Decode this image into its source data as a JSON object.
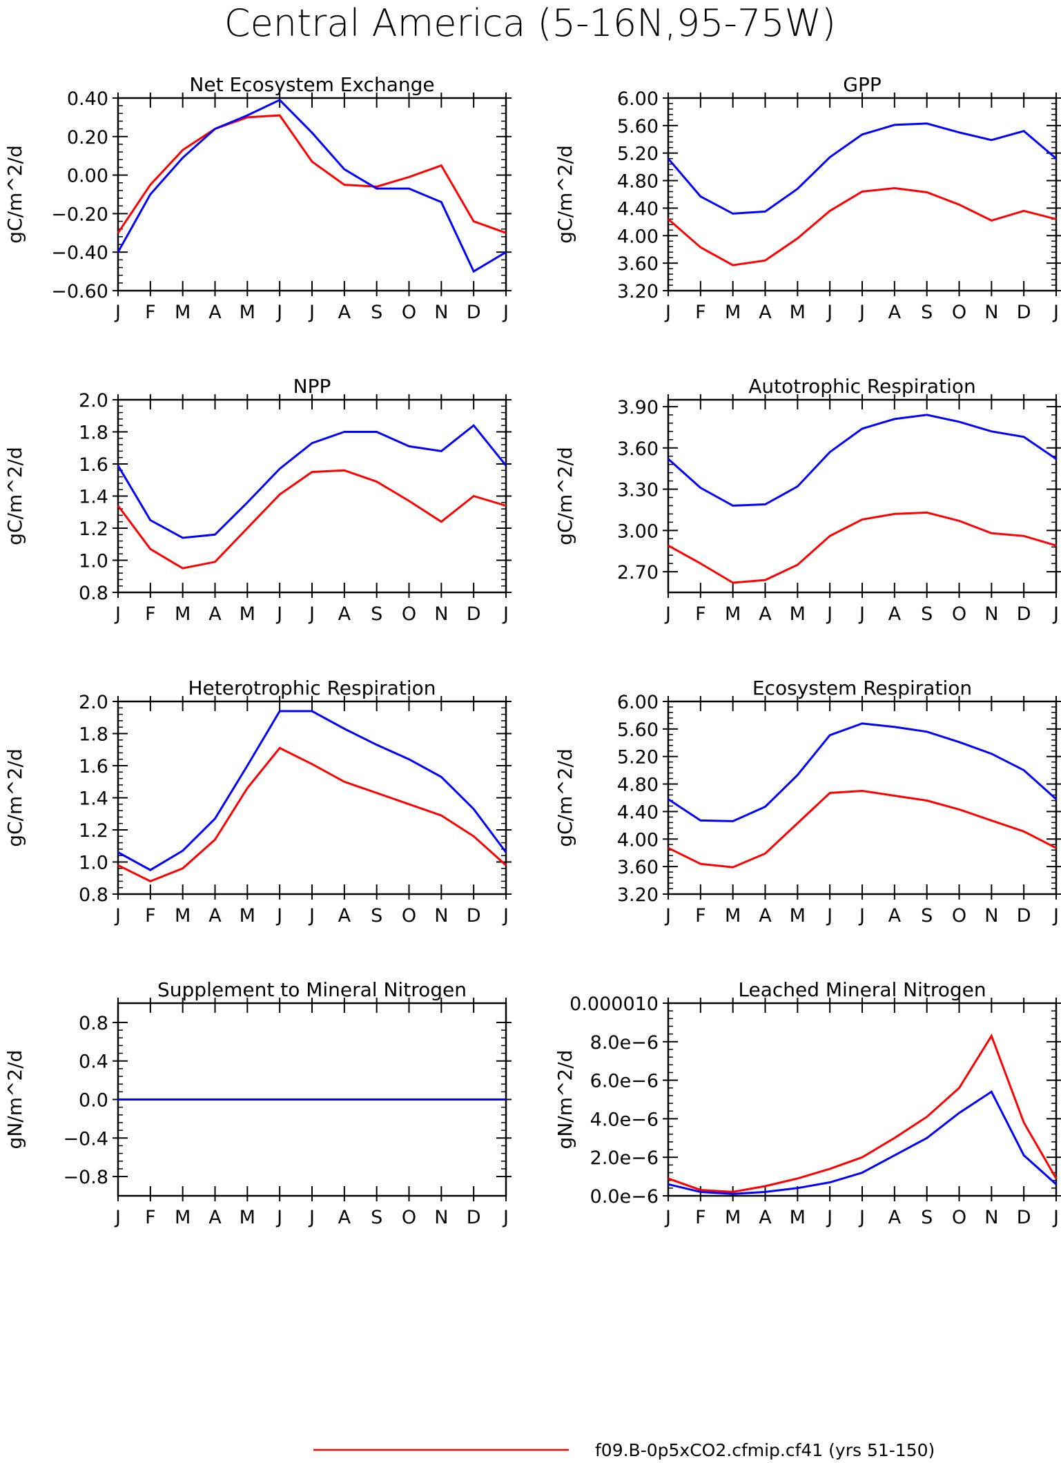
{
  "figure": {
    "title": "Central America (5-16N,95-75W)",
    "legend": [
      {
        "label": "f09.B-0p5xCO2.cfmip.cf41 (yrs 51-150)",
        "color": "#ff0000"
      }
    ]
  },
  "colors": {
    "series_red": "#ff0000",
    "series_blue": "#0000ff",
    "axes": "#000000"
  },
  "chart_data": [
    {
      "type": "line",
      "title": "Net Ecosystem Exchange",
      "ylabel": "gC/m^2/d",
      "categories": [
        "J",
        "F",
        "M",
        "A",
        "M",
        "J",
        "J",
        "A",
        "S",
        "O",
        "N",
        "D",
        "J"
      ],
      "ylim": [
        -0.6,
        0.4
      ],
      "yticks": [
        -0.6,
        -0.4,
        -0.2,
        0.0,
        0.2,
        0.4
      ],
      "yticklabels": [
        "−0.60",
        "−0.40",
        "−0.20",
        "0.00",
        "0.20",
        "0.40"
      ],
      "series": [
        {
          "color": "#ff0000",
          "values": [
            -0.3,
            -0.05,
            0.13,
            0.24,
            0.3,
            0.31,
            0.07,
            -0.05,
            -0.06,
            -0.01,
            0.05,
            -0.24,
            -0.3
          ]
        },
        {
          "color": "#0000ff",
          "values": [
            -0.4,
            -0.1,
            0.09,
            0.24,
            0.31,
            0.39,
            0.22,
            0.03,
            -0.07,
            -0.07,
            -0.14,
            -0.5,
            -0.4
          ]
        }
      ]
    },
    {
      "type": "line",
      "title": "GPP",
      "ylabel": "gC/m^2/d",
      "categories": [
        "J",
        "F",
        "M",
        "A",
        "M",
        "J",
        "J",
        "A",
        "S",
        "O",
        "N",
        "D",
        "J"
      ],
      "ylim": [
        3.2,
        6.0
      ],
      "yticks": [
        3.2,
        3.6,
        4.0,
        4.4,
        4.8,
        5.2,
        5.6,
        6.0
      ],
      "yticklabels": [
        "3.20",
        "3.60",
        "4.00",
        "4.40",
        "4.80",
        "5.20",
        "5.60",
        "6.00"
      ],
      "series": [
        {
          "color": "#ff0000",
          "values": [
            4.24,
            3.83,
            3.57,
            3.64,
            3.96,
            4.36,
            4.64,
            4.69,
            4.63,
            4.45,
            4.22,
            4.36,
            4.24
          ]
        },
        {
          "color": "#0000ff",
          "values": [
            5.12,
            4.57,
            4.32,
            4.35,
            4.68,
            5.14,
            5.47,
            5.61,
            5.63,
            5.5,
            5.39,
            5.52,
            5.12
          ]
        }
      ]
    },
    {
      "type": "line",
      "title": "NPP",
      "ylabel": "gC/m^2/d",
      "categories": [
        "J",
        "F",
        "M",
        "A",
        "M",
        "J",
        "J",
        "A",
        "S",
        "O",
        "N",
        "D",
        "J"
      ],
      "ylim": [
        0.8,
        2.0
      ],
      "yticks": [
        0.8,
        1.0,
        1.2,
        1.4,
        1.6,
        1.8,
        2.0
      ],
      "yticklabels": [
        "0.8",
        "1.0",
        "1.2",
        "1.4",
        "1.6",
        "1.8",
        "2.0"
      ],
      "series": [
        {
          "color": "#ff0000",
          "values": [
            1.34,
            1.07,
            0.95,
            0.99,
            1.2,
            1.41,
            1.55,
            1.56,
            1.49,
            1.37,
            1.24,
            1.4,
            1.34
          ]
        },
        {
          "color": "#0000ff",
          "values": [
            1.59,
            1.25,
            1.14,
            1.16,
            1.36,
            1.57,
            1.73,
            1.8,
            1.8,
            1.71,
            1.68,
            1.84,
            1.59
          ]
        }
      ]
    },
    {
      "type": "line",
      "title": "Autotrophic Respiration",
      "ylabel": "gC/m^2/d",
      "categories": [
        "J",
        "F",
        "M",
        "A",
        "M",
        "J",
        "J",
        "A",
        "S",
        "O",
        "N",
        "D",
        "J"
      ],
      "ylim": [
        2.55,
        3.95
      ],
      "yticks": [
        2.7,
        3.0,
        3.3,
        3.6,
        3.9
      ],
      "yticklabels": [
        "2.70",
        "3.00",
        "3.30",
        "3.60",
        "3.90"
      ],
      "series": [
        {
          "color": "#ff0000",
          "values": [
            2.89,
            2.76,
            2.62,
            2.64,
            2.75,
            2.96,
            3.08,
            3.12,
            3.13,
            3.07,
            2.98,
            2.96,
            2.89
          ]
        },
        {
          "color": "#0000ff",
          "values": [
            3.52,
            3.31,
            3.18,
            3.19,
            3.32,
            3.57,
            3.74,
            3.81,
            3.84,
            3.79,
            3.72,
            3.68,
            3.52
          ]
        }
      ]
    },
    {
      "type": "line",
      "title": "Heterotrophic Respiration",
      "ylabel": "gC/m^2/d",
      "categories": [
        "J",
        "F",
        "M",
        "A",
        "M",
        "J",
        "J",
        "A",
        "S",
        "O",
        "N",
        "D",
        "J"
      ],
      "ylim": [
        0.8,
        2.0
      ],
      "yticks": [
        0.8,
        1.0,
        1.2,
        1.4,
        1.6,
        1.8,
        2.0
      ],
      "yticklabels": [
        "0.8",
        "1.0",
        "1.2",
        "1.4",
        "1.6",
        "1.8",
        "2.0"
      ],
      "series": [
        {
          "color": "#ff0000",
          "values": [
            0.98,
            0.88,
            0.96,
            1.14,
            1.46,
            1.71,
            1.61,
            1.5,
            1.43,
            1.36,
            1.29,
            1.16,
            0.98
          ]
        },
        {
          "color": "#0000ff",
          "values": [
            1.06,
            0.95,
            1.07,
            1.27,
            1.6,
            1.94,
            1.94,
            1.83,
            1.73,
            1.64,
            1.53,
            1.33,
            1.06
          ]
        }
      ]
    },
    {
      "type": "line",
      "title": "Ecosystem Respiration",
      "ylabel": "gC/m^2/d",
      "categories": [
        "J",
        "F",
        "M",
        "A",
        "M",
        "J",
        "J",
        "A",
        "S",
        "O",
        "N",
        "D",
        "J"
      ],
      "ylim": [
        3.2,
        6.0
      ],
      "yticks": [
        3.2,
        3.6,
        4.0,
        4.4,
        4.8,
        5.2,
        5.6,
        6.0
      ],
      "yticklabels": [
        "3.20",
        "3.60",
        "4.00",
        "4.40",
        "4.80",
        "5.20",
        "5.60",
        "6.00"
      ],
      "series": [
        {
          "color": "#ff0000",
          "values": [
            3.87,
            3.64,
            3.59,
            3.79,
            4.23,
            4.67,
            4.7,
            4.63,
            4.56,
            4.43,
            4.27,
            4.11,
            3.87
          ]
        },
        {
          "color": "#0000ff",
          "values": [
            4.58,
            4.27,
            4.26,
            4.47,
            4.93,
            5.51,
            5.68,
            5.63,
            5.56,
            5.41,
            5.24,
            5.0,
            4.58
          ]
        }
      ]
    },
    {
      "type": "line",
      "title": "Supplement to Mineral Nitrogen",
      "ylabel": "gN/m^2/d",
      "categories": [
        "J",
        "F",
        "M",
        "A",
        "M",
        "J",
        "J",
        "A",
        "S",
        "O",
        "N",
        "D",
        "J"
      ],
      "ylim": [
        -1.0,
        1.0
      ],
      "yticks": [
        -0.8,
        -0.4,
        0.0,
        0.4,
        0.8
      ],
      "yticklabels": [
        "−0.8",
        "−0.4",
        "0.0",
        "0.4",
        "0.8"
      ],
      "series": [
        {
          "color": "#ff0000",
          "values": [
            0,
            0,
            0,
            0,
            0,
            0,
            0,
            0,
            0,
            0,
            0,
            0,
            0
          ]
        },
        {
          "color": "#0000ff",
          "values": [
            0,
            0,
            0,
            0,
            0,
            0,
            0,
            0,
            0,
            0,
            0,
            0,
            0
          ]
        }
      ]
    },
    {
      "type": "line",
      "title": "Leached Mineral Nitrogen",
      "ylabel": "gN/m^2/d",
      "categories": [
        "J",
        "F",
        "M",
        "A",
        "M",
        "J",
        "J",
        "A",
        "S",
        "O",
        "N",
        "D",
        "J"
      ],
      "ylim": [
        0.0,
        1e-05
      ],
      "yticks": [
        0.0,
        2e-06,
        4e-06,
        6e-06,
        8e-06,
        1e-05
      ],
      "yticklabels": [
        "0.0e−6",
        "2.0e−6",
        "4.0e−6",
        "6.0e−6",
        "8.0e−6",
        "0.000010"
      ],
      "series": [
        {
          "color": "#ff0000",
          "values": [
            9e-07,
            3e-07,
            2e-07,
            5e-07,
            9e-07,
            1.4e-06,
            2e-06,
            3e-06,
            4.1e-06,
            5.6e-06,
            8.3e-06,
            3.8e-06,
            9e-07
          ]
        },
        {
          "color": "#0000ff",
          "values": [
            6e-07,
            2e-07,
            1e-07,
            2e-07,
            4e-07,
            7e-07,
            1.2e-06,
            2.1e-06,
            3e-06,
            4.3e-06,
            5.4e-06,
            2.1e-06,
            6e-07
          ]
        }
      ]
    }
  ]
}
